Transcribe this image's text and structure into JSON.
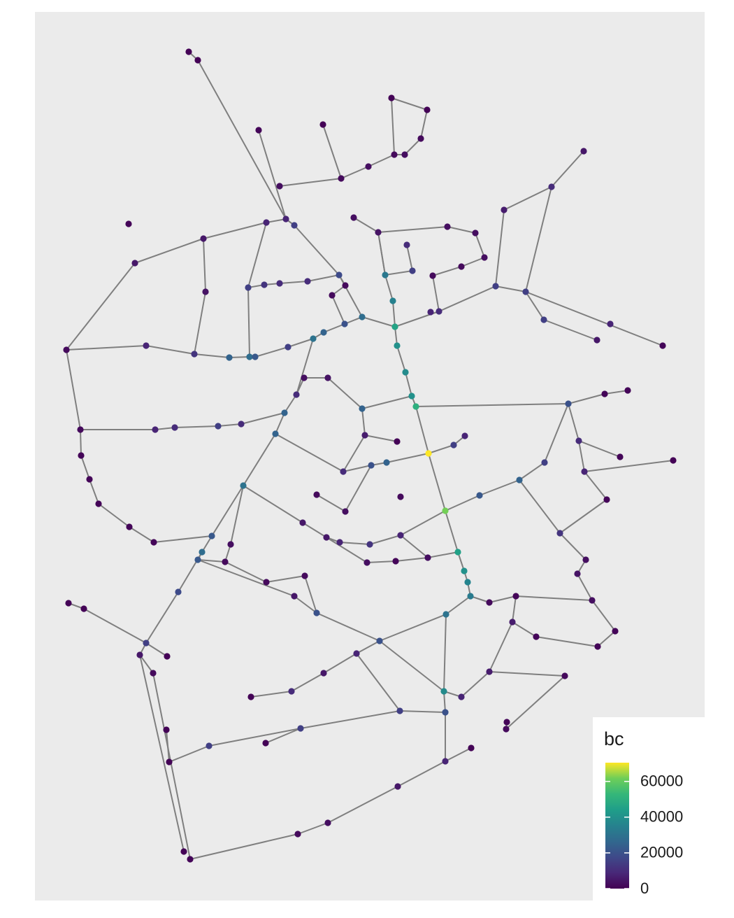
{
  "chart_data": {
    "type": "network",
    "x": [
      613,
      637,
      595,
      589,
      580,
      568,
      565,
      562,
      551,
      655,
      664,
      669,
      673,
      638,
      635,
      637,
      637,
      569,
      469,
      426,
      272,
      543,
      510,
      463,
      417,
      430,
      572,
      660,
      700,
      733,
      808,
      724,
      453,
      421,
      283,
      289,
      303,
      348,
      394,
      407,
      424,
      448,
      463,
      493,
      518,
      485,
      328,
      357,
      365,
      412,
      278,
      209,
      95,
      345,
      312,
      250,
      222,
      115,
      491,
      531,
      553,
      649,
      665,
      743,
      686,
      779,
      813,
      828,
      836,
      801,
      573,
      529,
      486,
      467,
      433,
      255,
      209,
      200,
      219,
      299,
      752,
      709,
      590,
      582,
      789,
      835,
      721,
      873,
      778,
      628,
      616,
      291,
      193,
      184,
      381,
      421,
      355,
      378,
      400,
      440,
      294,
      409,
      283,
      270,
      948,
      963,
      854,
      898,
      560,
      611,
      564,
      579,
      602,
      527,
      488,
      462,
      370,
      400,
      506,
      541,
      640,
      680,
      693,
      660,
      619,
      494,
      475,
      518,
      469,
      435,
      522,
      568,
      453,
      494,
      573,
      612,
      566,
      525,
      436,
      381,
      322,
      330,
      141,
      128,
      116,
      185,
      220,
      380,
      359,
      674,
      725,
      767,
      855,
      880,
      738,
      700,
      847,
      826,
      838,
      868,
      887,
      865,
      120,
      98,
      242,
      263,
      239,
      238
    ],
    "y": [
      648,
      730,
      581,
      566,
      532,
      494,
      467,
      430,
      393,
      789,
      816,
      832,
      852,
      878,
      988,
      1018,
      1088,
      1124,
      1176,
      1192,
      1228,
      916,
      934,
      962,
      988,
      1041,
      1016,
      996,
      960,
      889,
      966,
      1042,
      876,
      852,
      800,
      789,
      766,
      694,
      620,
      590,
      564,
      484,
      475,
      463,
      453,
      393,
      511,
      510,
      510,
      496,
      506,
      494,
      500,
      606,
      609,
      611,
      614,
      614,
      674,
      665,
      661,
      636,
      623,
      686,
      708,
      661,
      577,
      630,
      674,
      762,
      765,
      778,
      775,
      768,
      747,
      846,
      919,
      936,
      962,
      1066,
      417,
      409,
      387,
      350,
      267,
      216,
      300,
      463,
      457,
      445,
      446,
      341,
      376,
      320,
      318,
      322,
      411,
      407,
      405,
      402,
      417,
      313,
      86,
      74,
      494,
      658,
      486,
      558,
      140,
      157,
      221,
      221,
      198,
      238,
      255,
      178,
      186,
      266,
      311,
      332,
      324,
      333,
      368,
      381,
      394,
      408,
      422,
      584,
      540,
      540,
      622,
      631,
      707,
      731,
      710,
      797,
      802,
      804,
      823,
      832,
      803,
      778,
      720,
      685,
      651,
      753,
      775,
      1062,
      996,
      1069,
      1032,
      910,
      924,
      902,
      852,
      861,
      858,
      820,
      800,
      714,
      653,
      563,
      870,
      862,
      1089,
      1217,
      938,
      1043
    ],
    "bc": [
      70500,
      62000,
      50000,
      40000,
      38000,
      40000,
      46000,
      35000,
      32000,
      45000,
      40000,
      36000,
      33000,
      30000,
      38000,
      20000,
      8000,
      5000,
      3000,
      2000,
      1000,
      20000,
      8000,
      5000,
      10000,
      15000,
      15000,
      8000,
      6000,
      6000,
      2000,
      2000,
      20000,
      5000,
      22000,
      28000,
      22000,
      30000,
      25000,
      25000,
      10000,
      30000,
      25000,
      20000,
      28000,
      18000,
      25000,
      28000,
      22000,
      15000,
      12000,
      8000,
      2000,
      10000,
      15000,
      10000,
      8000,
      2000,
      10000,
      20000,
      25000,
      15000,
      8000,
      25000,
      22000,
      15000,
      20000,
      10000,
      8000,
      12000,
      8000,
      12000,
      8000,
      5000,
      5000,
      18000,
      15000,
      5000,
      2000,
      15000,
      15000,
      15000,
      15000,
      10000,
      10000,
      5000,
      6000,
      8000,
      15000,
      10000,
      8000,
      5000,
      5000,
      1000,
      8000,
      15000,
      15000,
      12000,
      10000,
      10000,
      4000,
      8000,
      500,
      500,
      1000,
      500,
      5000,
      1000,
      500,
      500,
      2000,
      3000,
      2000,
      3000,
      2000,
      500,
      1000,
      3000,
      3000,
      4000,
      3000,
      3000,
      3000,
      2000,
      2000,
      2000,
      2000,
      25000,
      4000,
      3000,
      6000,
      500,
      2000,
      3000,
      2000,
      3000,
      1000,
      3000,
      2000,
      2000,
      2000,
      3000,
      1000,
      1000,
      1000,
      1000,
      1000,
      500,
      500,
      500,
      1000,
      1000,
      1000,
      1000,
      1000,
      2000,
      3000,
      4000,
      3000,
      1000,
      1000,
      1000,
      500,
      500,
      500,
      500,
      500,
      500
    ],
    "edges": [
      [
        8,
        7
      ],
      [
        7,
        6
      ],
      [
        6,
        5
      ],
      [
        5,
        4
      ],
      [
        4,
        3
      ],
      [
        3,
        2
      ],
      [
        2,
        0
      ],
      [
        0,
        1
      ],
      [
        1,
        9
      ],
      [
        9,
        10
      ],
      [
        10,
        11
      ],
      [
        11,
        12
      ],
      [
        12,
        13
      ],
      [
        13,
        14
      ],
      [
        14,
        15
      ],
      [
        15,
        16
      ],
      [
        16,
        17
      ],
      [
        17,
        18
      ],
      [
        18,
        19
      ],
      [
        19,
        20
      ],
      [
        14,
        27
      ],
      [
        27,
        28
      ],
      [
        28,
        29
      ],
      [
        29,
        154
      ],
      [
        28,
        30
      ],
      [
        21,
        13
      ],
      [
        21,
        22
      ],
      [
        22,
        23
      ],
      [
        23,
        24
      ],
      [
        25,
        26
      ],
      [
        26,
        15
      ],
      [
        22,
        26
      ],
      [
        24,
        148
      ],
      [
        25,
        147
      ],
      [
        21,
        14
      ],
      [
        32,
        21
      ],
      [
        32,
        33
      ],
      [
        33,
        34
      ],
      [
        34,
        35
      ],
      [
        35,
        75
      ],
      [
        75,
        76
      ],
      [
        76,
        77
      ],
      [
        77,
        78
      ],
      [
        78,
        20
      ],
      [
        77,
        165
      ],
      [
        52,
        92
      ],
      [
        92,
        91
      ],
      [
        91,
        94
      ],
      [
        94,
        101
      ],
      [
        101,
        95
      ],
      [
        52,
        51
      ],
      [
        51,
        50
      ],
      [
        50,
        46
      ],
      [
        46,
        47
      ],
      [
        47,
        48
      ],
      [
        48,
        49
      ],
      [
        49,
        41
      ],
      [
        41,
        42
      ],
      [
        42,
        43
      ],
      [
        43,
        44
      ],
      [
        44,
        6
      ],
      [
        52,
        57
      ],
      [
        57,
        144
      ],
      [
        144,
        143
      ],
      [
        143,
        142
      ],
      [
        142,
        145
      ],
      [
        145,
        146
      ],
      [
        146,
        36
      ],
      [
        36,
        37
      ],
      [
        37,
        38
      ],
      [
        38,
        39
      ],
      [
        39,
        40
      ],
      [
        40,
        41
      ],
      [
        39,
        53
      ],
      [
        53,
        54
      ],
      [
        54,
        55
      ],
      [
        55,
        56
      ],
      [
        56,
        57
      ],
      [
        38,
        58
      ],
      [
        58,
        59
      ],
      [
        59,
        60
      ],
      [
        60,
        0
      ],
      [
        0,
        61
      ],
      [
        61,
        62
      ],
      [
        1,
        64
      ],
      [
        64,
        63
      ],
      [
        63,
        65
      ],
      [
        65,
        66
      ],
      [
        66,
        2
      ],
      [
        66,
        67
      ],
      [
        67,
        68
      ],
      [
        1,
        70
      ],
      [
        70,
        71
      ],
      [
        71,
        72
      ],
      [
        72,
        73
      ],
      [
        73,
        74
      ],
      [
        74,
        37
      ],
      [
        36,
        35
      ],
      [
        37,
        141
      ],
      [
        141,
        140
      ],
      [
        6,
        89
      ],
      [
        89,
        81
      ],
      [
        81,
        80
      ],
      [
        80,
        88
      ],
      [
        80,
        104
      ],
      [
        88,
        106
      ],
      [
        81,
        86
      ],
      [
        86,
        84
      ],
      [
        84,
        85
      ],
      [
        84,
        80
      ],
      [
        8,
        82
      ],
      [
        82,
        83
      ],
      [
        8,
        119
      ],
      [
        45,
        44
      ],
      [
        95,
        45
      ],
      [
        95,
        101
      ],
      [
        94,
        96
      ],
      [
        96,
        97
      ],
      [
        97,
        98
      ],
      [
        98,
        99
      ],
      [
        99,
        45
      ],
      [
        96,
        47
      ],
      [
        100,
        91
      ],
      [
        100,
        50
      ],
      [
        102,
        103
      ],
      [
        102,
        101
      ],
      [
        116,
        101
      ],
      [
        108,
        109
      ],
      [
        108,
        110
      ],
      [
        110,
        111
      ],
      [
        111,
        112
      ],
      [
        112,
        109
      ],
      [
        110,
        113
      ],
      [
        113,
        114
      ],
      [
        114,
        115
      ],
      [
        114,
        117
      ],
      [
        118,
        119
      ],
      [
        119,
        8
      ],
      [
        119,
        120
      ],
      [
        121,
        122
      ],
      [
        122,
        123
      ],
      [
        123,
        124
      ],
      [
        124,
        89
      ],
      [
        120,
        121
      ],
      [
        125,
        126
      ],
      [
        126,
        43
      ],
      [
        125,
        45
      ],
      [
        127,
        128
      ],
      [
        128,
        129
      ],
      [
        129,
        40
      ],
      [
        127,
        3
      ],
      [
        127,
        130
      ],
      [
        130,
        58
      ],
      [
        130,
        131
      ],
      [
        132,
        133
      ],
      [
        133,
        59
      ],
      [
        9,
        135
      ],
      [
        135,
        70
      ],
      [
        135,
        136
      ],
      [
        136,
        137
      ],
      [
        137,
        73
      ],
      [
        138,
        139
      ],
      [
        139,
        140
      ],
      [
        138,
        32
      ],
      [
        12,
        155
      ],
      [
        155,
        154
      ],
      [
        154,
        156
      ],
      [
        156,
        157
      ],
      [
        157,
        158
      ],
      [
        158,
        69
      ],
      [
        69,
        63
      ],
      [
        69,
        159
      ],
      [
        159,
        68
      ],
      [
        67,
        160
      ],
      [
        66,
        161
      ],
      [
        161,
        107
      ],
      [
        105,
        68
      ],
      [
        151,
        29
      ],
      [
        151,
        152
      ],
      [
        152,
        153
      ],
      [
        153,
        156
      ],
      [
        150,
        31
      ],
      [
        31,
        30
      ],
      [
        16,
        149
      ],
      [
        162,
        163
      ],
      [
        162,
        76
      ],
      [
        164,
        79
      ],
      [
        79,
        25
      ],
      [
        164,
        167
      ],
      [
        166,
        76
      ],
      [
        34,
        140
      ]
    ],
    "xlim": [
      50,
      1008
    ],
    "ylim": [
      1287,
      17
    ],
    "node_color": {
      "title": "bc",
      "lim": [
        0,
        70500
      ],
      "ticks": [
        0,
        20000,
        40000,
        60000
      ],
      "colors": [
        "#440154",
        "#482878",
        "#3e4989",
        "#31688e",
        "#26828e",
        "#1f9e89",
        "#35b779",
        "#6ece58",
        "#fde725"
      ]
    },
    "edge_color": "#7f7f7f"
  }
}
